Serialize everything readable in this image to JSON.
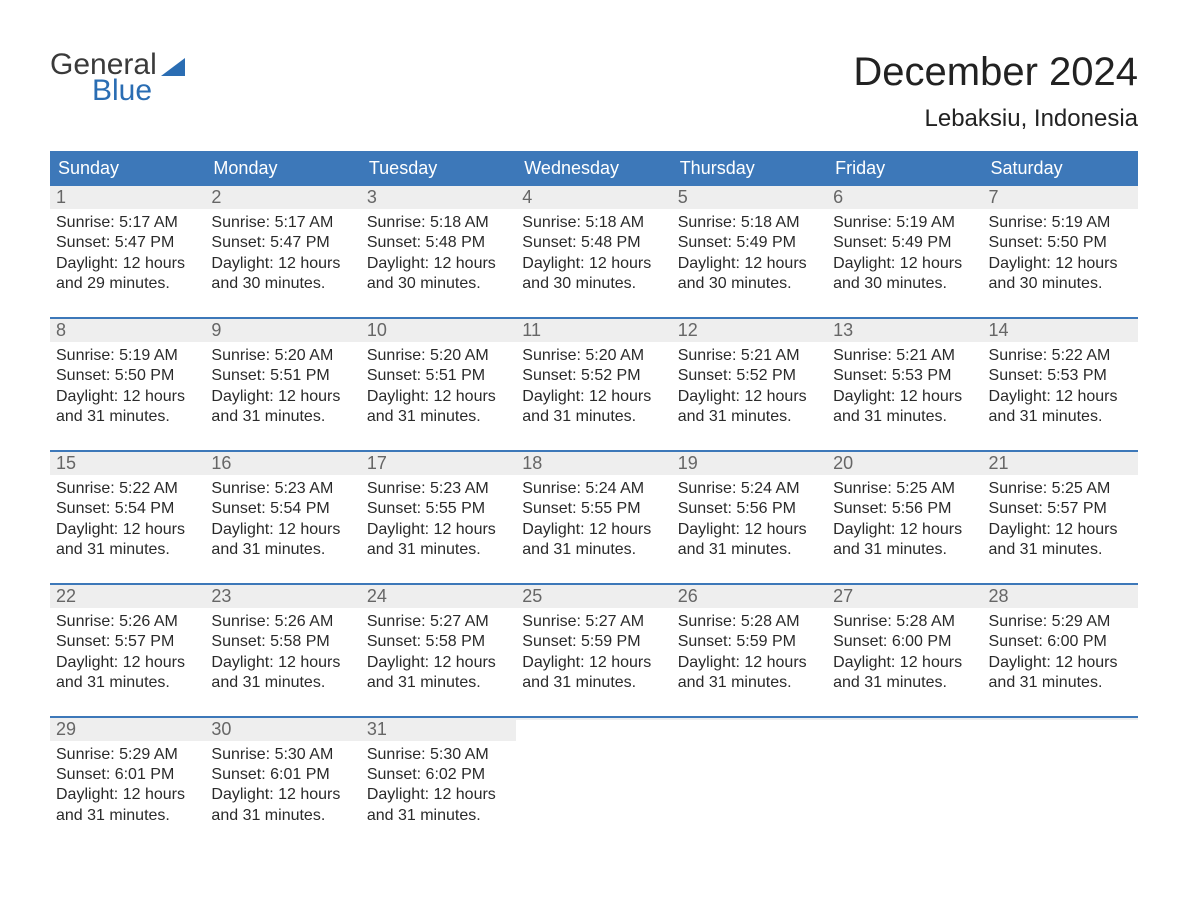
{
  "brand": {
    "line1": "General",
    "line2": "Blue",
    "flag_color": "#2a6db3"
  },
  "title": {
    "month": "December 2024",
    "location": "Lebaksiu, Indonesia"
  },
  "colors": {
    "header_bg": "#3d78b9",
    "header_text": "#ffffff",
    "daynum_bg": "#eeeeee",
    "daynum_text": "#666666",
    "body_text": "#2a2a2a",
    "week_border": "#3d78b9",
    "page_bg": "#ffffff"
  },
  "weekdays": [
    "Sunday",
    "Monday",
    "Tuesday",
    "Wednesday",
    "Thursday",
    "Friday",
    "Saturday"
  ],
  "weeks": [
    [
      {
        "n": "1",
        "sunrise": "Sunrise: 5:17 AM",
        "sunset": "Sunset: 5:47 PM",
        "d1": "Daylight: 12 hours",
        "d2": "and 29 minutes."
      },
      {
        "n": "2",
        "sunrise": "Sunrise: 5:17 AM",
        "sunset": "Sunset: 5:47 PM",
        "d1": "Daylight: 12 hours",
        "d2": "and 30 minutes."
      },
      {
        "n": "3",
        "sunrise": "Sunrise: 5:18 AM",
        "sunset": "Sunset: 5:48 PM",
        "d1": "Daylight: 12 hours",
        "d2": "and 30 minutes."
      },
      {
        "n": "4",
        "sunrise": "Sunrise: 5:18 AM",
        "sunset": "Sunset: 5:48 PM",
        "d1": "Daylight: 12 hours",
        "d2": "and 30 minutes."
      },
      {
        "n": "5",
        "sunrise": "Sunrise: 5:18 AM",
        "sunset": "Sunset: 5:49 PM",
        "d1": "Daylight: 12 hours",
        "d2": "and 30 minutes."
      },
      {
        "n": "6",
        "sunrise": "Sunrise: 5:19 AM",
        "sunset": "Sunset: 5:49 PM",
        "d1": "Daylight: 12 hours",
        "d2": "and 30 minutes."
      },
      {
        "n": "7",
        "sunrise": "Sunrise: 5:19 AM",
        "sunset": "Sunset: 5:50 PM",
        "d1": "Daylight: 12 hours",
        "d2": "and 30 minutes."
      }
    ],
    [
      {
        "n": "8",
        "sunrise": "Sunrise: 5:19 AM",
        "sunset": "Sunset: 5:50 PM",
        "d1": "Daylight: 12 hours",
        "d2": "and 31 minutes."
      },
      {
        "n": "9",
        "sunrise": "Sunrise: 5:20 AM",
        "sunset": "Sunset: 5:51 PM",
        "d1": "Daylight: 12 hours",
        "d2": "and 31 minutes."
      },
      {
        "n": "10",
        "sunrise": "Sunrise: 5:20 AM",
        "sunset": "Sunset: 5:51 PM",
        "d1": "Daylight: 12 hours",
        "d2": "and 31 minutes."
      },
      {
        "n": "11",
        "sunrise": "Sunrise: 5:20 AM",
        "sunset": "Sunset: 5:52 PM",
        "d1": "Daylight: 12 hours",
        "d2": "and 31 minutes."
      },
      {
        "n": "12",
        "sunrise": "Sunrise: 5:21 AM",
        "sunset": "Sunset: 5:52 PM",
        "d1": "Daylight: 12 hours",
        "d2": "and 31 minutes."
      },
      {
        "n": "13",
        "sunrise": "Sunrise: 5:21 AM",
        "sunset": "Sunset: 5:53 PM",
        "d1": "Daylight: 12 hours",
        "d2": "and 31 minutes."
      },
      {
        "n": "14",
        "sunrise": "Sunrise: 5:22 AM",
        "sunset": "Sunset: 5:53 PM",
        "d1": "Daylight: 12 hours",
        "d2": "and 31 minutes."
      }
    ],
    [
      {
        "n": "15",
        "sunrise": "Sunrise: 5:22 AM",
        "sunset": "Sunset: 5:54 PM",
        "d1": "Daylight: 12 hours",
        "d2": "and 31 minutes."
      },
      {
        "n": "16",
        "sunrise": "Sunrise: 5:23 AM",
        "sunset": "Sunset: 5:54 PM",
        "d1": "Daylight: 12 hours",
        "d2": "and 31 minutes."
      },
      {
        "n": "17",
        "sunrise": "Sunrise: 5:23 AM",
        "sunset": "Sunset: 5:55 PM",
        "d1": "Daylight: 12 hours",
        "d2": "and 31 minutes."
      },
      {
        "n": "18",
        "sunrise": "Sunrise: 5:24 AM",
        "sunset": "Sunset: 5:55 PM",
        "d1": "Daylight: 12 hours",
        "d2": "and 31 minutes."
      },
      {
        "n": "19",
        "sunrise": "Sunrise: 5:24 AM",
        "sunset": "Sunset: 5:56 PM",
        "d1": "Daylight: 12 hours",
        "d2": "and 31 minutes."
      },
      {
        "n": "20",
        "sunrise": "Sunrise: 5:25 AM",
        "sunset": "Sunset: 5:56 PM",
        "d1": "Daylight: 12 hours",
        "d2": "and 31 minutes."
      },
      {
        "n": "21",
        "sunrise": "Sunrise: 5:25 AM",
        "sunset": "Sunset: 5:57 PM",
        "d1": "Daylight: 12 hours",
        "d2": "and 31 minutes."
      }
    ],
    [
      {
        "n": "22",
        "sunrise": "Sunrise: 5:26 AM",
        "sunset": "Sunset: 5:57 PM",
        "d1": "Daylight: 12 hours",
        "d2": "and 31 minutes."
      },
      {
        "n": "23",
        "sunrise": "Sunrise: 5:26 AM",
        "sunset": "Sunset: 5:58 PM",
        "d1": "Daylight: 12 hours",
        "d2": "and 31 minutes."
      },
      {
        "n": "24",
        "sunrise": "Sunrise: 5:27 AM",
        "sunset": "Sunset: 5:58 PM",
        "d1": "Daylight: 12 hours",
        "d2": "and 31 minutes."
      },
      {
        "n": "25",
        "sunrise": "Sunrise: 5:27 AM",
        "sunset": "Sunset: 5:59 PM",
        "d1": "Daylight: 12 hours",
        "d2": "and 31 minutes."
      },
      {
        "n": "26",
        "sunrise": "Sunrise: 5:28 AM",
        "sunset": "Sunset: 5:59 PM",
        "d1": "Daylight: 12 hours",
        "d2": "and 31 minutes."
      },
      {
        "n": "27",
        "sunrise": "Sunrise: 5:28 AM",
        "sunset": "Sunset: 6:00 PM",
        "d1": "Daylight: 12 hours",
        "d2": "and 31 minutes."
      },
      {
        "n": "28",
        "sunrise": "Sunrise: 5:29 AM",
        "sunset": "Sunset: 6:00 PM",
        "d1": "Daylight: 12 hours",
        "d2": "and 31 minutes."
      }
    ],
    [
      {
        "n": "29",
        "sunrise": "Sunrise: 5:29 AM",
        "sunset": "Sunset: 6:01 PM",
        "d1": "Daylight: 12 hours",
        "d2": "and 31 minutes."
      },
      {
        "n": "30",
        "sunrise": "Sunrise: 5:30 AM",
        "sunset": "Sunset: 6:01 PM",
        "d1": "Daylight: 12 hours",
        "d2": "and 31 minutes."
      },
      {
        "n": "31",
        "sunrise": "Sunrise: 5:30 AM",
        "sunset": "Sunset: 6:02 PM",
        "d1": "Daylight: 12 hours",
        "d2": "and 31 minutes."
      },
      {
        "empty": true
      },
      {
        "empty": true
      },
      {
        "empty": true
      },
      {
        "empty": true
      }
    ]
  ]
}
